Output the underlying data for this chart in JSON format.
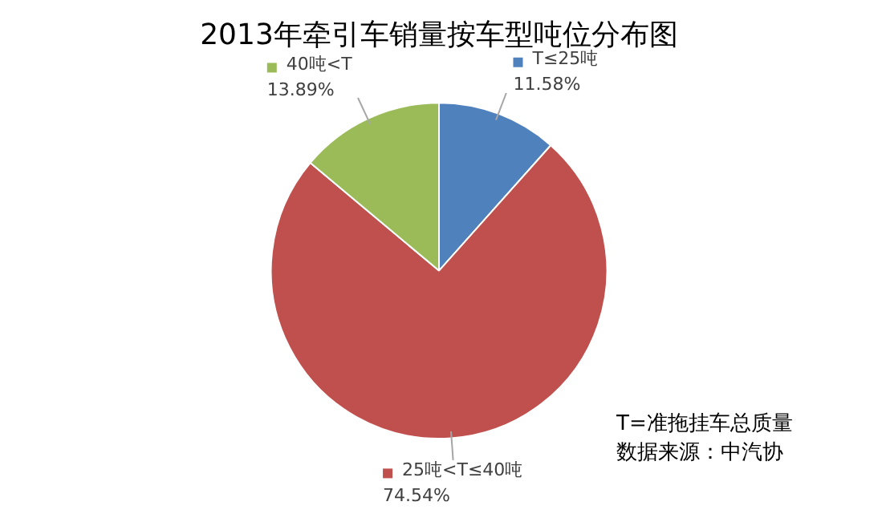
{
  "chart_data": {
    "type": "pie",
    "title": "2013年牵引车销量按车型吨位分布图",
    "categories": [
      "T≤25吨",
      "25吨<T≤40吨",
      "40吨<T"
    ],
    "values": [
      11.58,
      74.54,
      13.89
    ],
    "value_labels": [
      "11.58%",
      "74.54%",
      "13.89%"
    ],
    "colors": [
      "#4f81bd",
      "#c0504d",
      "#9bbb59"
    ],
    "legend": true,
    "annotations": [
      "T=准拖挂车总质量",
      "数据来源：中汽协"
    ]
  }
}
